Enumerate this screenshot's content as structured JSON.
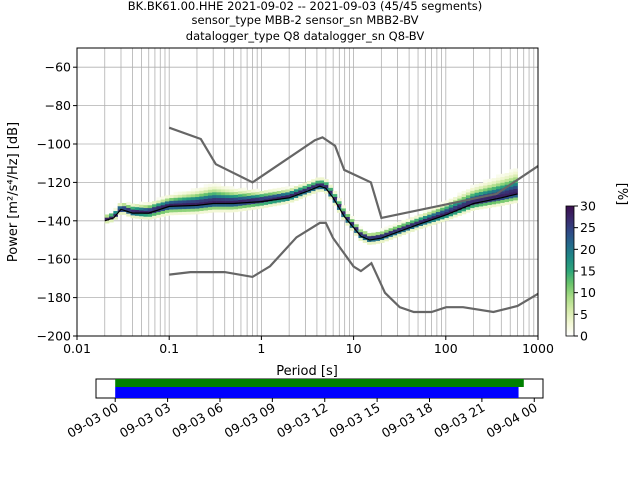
{
  "title_lines": [
    "BK.BK61.00.HHE   2021-09-02 -- 2021-09-03  (45/45 segments)",
    "sensor_type MBB-2 sensor_sn MBB2-BV",
    "datalogger_type Q8 datalogger_sn Q8-BV"
  ],
  "chart_data": [
    {
      "type": "heatmap",
      "xlabel": "Period [s]",
      "ylabel": "Power [m²/s⁴/Hz] [dB]",
      "xscale": "log",
      "xlim": [
        0.01,
        1000
      ],
      "ylim": [
        -200,
        -50
      ],
      "xticks": [
        {
          "value": 0.01,
          "label": "0.01"
        },
        {
          "value": 0.1,
          "label": "0.1"
        },
        {
          "value": 1,
          "label": "1"
        },
        {
          "value": 10,
          "label": "10"
        },
        {
          "value": 100,
          "label": "100"
        },
        {
          "value": 1000,
          "label": "1000"
        }
      ],
      "yticks": [
        {
          "value": -60,
          "label": "−60"
        },
        {
          "value": -80,
          "label": "−80"
        },
        {
          "value": -100,
          "label": "−100"
        },
        {
          "value": -120,
          "label": "−120"
        },
        {
          "value": -140,
          "label": "−140"
        },
        {
          "value": -160,
          "label": "−160"
        },
        {
          "value": -180,
          "label": "−180"
        },
        {
          "value": -200,
          "label": "−200"
        }
      ],
      "grid": true,
      "colorbar": {
        "label": "[%]",
        "range": [
          0,
          30
        ],
        "ticks": [
          {
            "value": 0,
            "label": "0"
          },
          {
            "value": 5,
            "label": "5"
          },
          {
            "value": 10,
            "label": "10"
          },
          {
            "value": 15,
            "label": "15"
          },
          {
            "value": 20,
            "label": "20"
          },
          {
            "value": 25,
            "label": "25"
          },
          {
            "value": 30,
            "label": "30"
          }
        ],
        "colors": [
          "#ffffff",
          "#f2f7d4",
          "#d5ebaa",
          "#a9dc86",
          "#6bc46b",
          "#2ea67a",
          "#1f8a85",
          "#246b8c",
          "#2f4a86",
          "#3a2a6c",
          "#3b0f4e"
        ]
      },
      "high_noise_model": [
        {
          "x": 0.1,
          "y": -91.5
        },
        {
          "x": 0.22,
          "y": -97.4
        },
        {
          "x": 0.32,
          "y": -110.5
        },
        {
          "x": 0.8,
          "y": -120
        },
        {
          "x": 3.8,
          "y": -98
        },
        {
          "x": 4.6,
          "y": -96.5
        },
        {
          "x": 6.3,
          "y": -101
        },
        {
          "x": 7.9,
          "y": -113.5
        },
        {
          "x": 15.4,
          "y": -120
        },
        {
          "x": 20,
          "y": -138.5
        },
        {
          "x": 354.8,
          "y": -126
        },
        {
          "x": 1000,
          "y": -111.5
        }
      ],
      "low_noise_model": [
        {
          "x": 0.1,
          "y": -168
        },
        {
          "x": 0.17,
          "y": -166.7
        },
        {
          "x": 0.4,
          "y": -166.7
        },
        {
          "x": 0.8,
          "y": -169.2
        },
        {
          "x": 1.24,
          "y": -163.7
        },
        {
          "x": 2.4,
          "y": -148.6
        },
        {
          "x": 4.3,
          "y": -141.1
        },
        {
          "x": 5,
          "y": -141.1
        },
        {
          "x": 6,
          "y": -149
        },
        {
          "x": 10,
          "y": -163.8
        },
        {
          "x": 12,
          "y": -166.2
        },
        {
          "x": 15.6,
          "y": -162.1
        },
        {
          "x": 21.9,
          "y": -177.5
        },
        {
          "x": 31.6,
          "y": -185
        },
        {
          "x": 45,
          "y": -187.5
        },
        {
          "x": 70,
          "y": -187.5
        },
        {
          "x": 101,
          "y": -185
        },
        {
          "x": 154,
          "y": -185
        },
        {
          "x": 328,
          "y": -187.5
        },
        {
          "x": 600,
          "y": -184.4
        },
        {
          "x": 1000,
          "y": -178
        }
      ],
      "mean_psd": [
        {
          "x": 0.02,
          "y": -140
        },
        {
          "x": 0.025,
          "y": -138.5
        },
        {
          "x": 0.03,
          "y": -134
        },
        {
          "x": 0.04,
          "y": -136
        },
        {
          "x": 0.06,
          "y": -136
        },
        {
          "x": 0.1,
          "y": -132.5
        },
        {
          "x": 0.2,
          "y": -132
        },
        {
          "x": 0.3,
          "y": -131
        },
        {
          "x": 0.5,
          "y": -131
        },
        {
          "x": 1,
          "y": -130
        },
        {
          "x": 2,
          "y": -128
        },
        {
          "x": 3,
          "y": -125
        },
        {
          "x": 4.3,
          "y": -122
        },
        {
          "x": 5,
          "y": -123
        },
        {
          "x": 6,
          "y": -128
        },
        {
          "x": 8,
          "y": -138
        },
        {
          "x": 12,
          "y": -148
        },
        {
          "x": 15,
          "y": -150
        },
        {
          "x": 20,
          "y": -149
        },
        {
          "x": 50,
          "y": -142
        },
        {
          "x": 100,
          "y": -137
        },
        {
          "x": 200,
          "y": -131
        },
        {
          "x": 400,
          "y": -128
        },
        {
          "x": 600,
          "y": -126
        }
      ],
      "spread_db": [
        {
          "x": 0.02,
          "lo": -2,
          "hi": 2
        },
        {
          "x": 0.04,
          "lo": -3,
          "hi": 4
        },
        {
          "x": 0.1,
          "lo": -5,
          "hi": 5
        },
        {
          "x": 0.3,
          "lo": -5,
          "hi": 9
        },
        {
          "x": 0.5,
          "lo": -5,
          "hi": 7
        },
        {
          "x": 1,
          "lo": -4,
          "hi": 5
        },
        {
          "x": 3,
          "lo": -3,
          "hi": 4
        },
        {
          "x": 6,
          "lo": -3,
          "hi": 4
        },
        {
          "x": 15,
          "lo": -3,
          "hi": 3
        },
        {
          "x": 50,
          "lo": -3,
          "hi": 4
        },
        {
          "x": 200,
          "lo": -4,
          "hi": 8
        },
        {
          "x": 600,
          "lo": -5,
          "hi": 12
        }
      ]
    },
    {
      "type": "timeline",
      "tick_labels": [
        "09-03 00",
        "09-03 03",
        "09-03 06",
        "09-03 09",
        "09-03 12",
        "09-03 15",
        "09-03 18",
        "09-03 21",
        "09-04 00"
      ],
      "tick_hours": [
        0,
        3,
        6,
        9,
        12,
        15,
        18,
        21,
        24
      ],
      "xlim_hours": [
        -1.1,
        24.5
      ],
      "data_coverage_hours": [
        0,
        23.4
      ],
      "ppsd_coverage_hours": [
        0,
        23.1
      ],
      "colors": {
        "data": "#008000",
        "ppsd": "#0000ff"
      }
    }
  ]
}
